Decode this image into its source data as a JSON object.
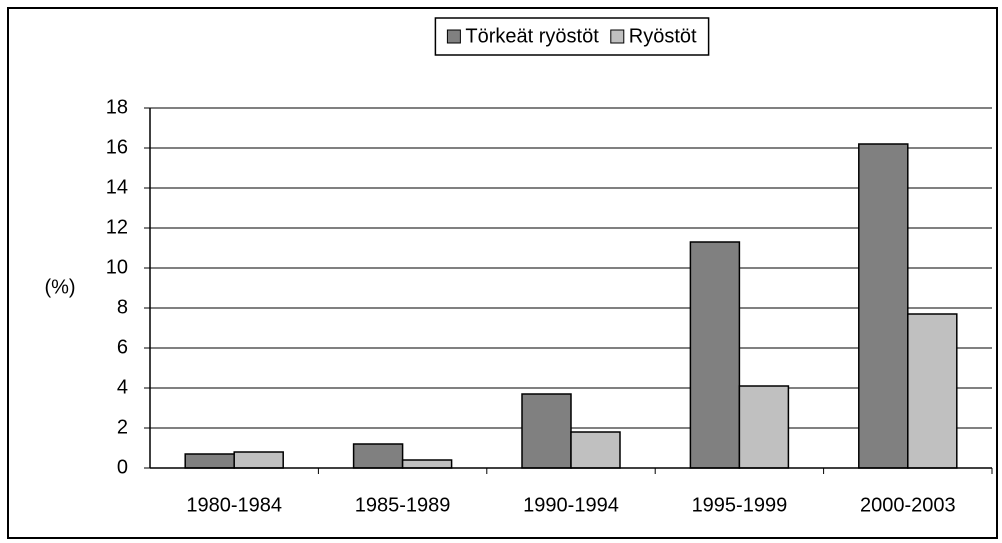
{
  "chart_data": {
    "type": "bar",
    "categories": [
      "1980-1984",
      "1985-1989",
      "1990-1994",
      "1995-1999",
      "2000-2003"
    ],
    "series": [
      {
        "name": "Törkeät ryöstöt",
        "color": "#808080",
        "values": [
          0.7,
          1.2,
          3.7,
          11.3,
          16.2
        ]
      },
      {
        "name": "Ryöstöt",
        "color": "#c0c0c0",
        "values": [
          0.8,
          0.4,
          1.8,
          4.1,
          7.7
        ]
      }
    ],
    "y_label": "(%)",
    "ylim": [
      0,
      18
    ],
    "yticks": [
      0,
      2,
      4,
      6,
      8,
      10,
      12,
      14,
      16,
      18
    ],
    "grid": true,
    "legend": "top"
  }
}
